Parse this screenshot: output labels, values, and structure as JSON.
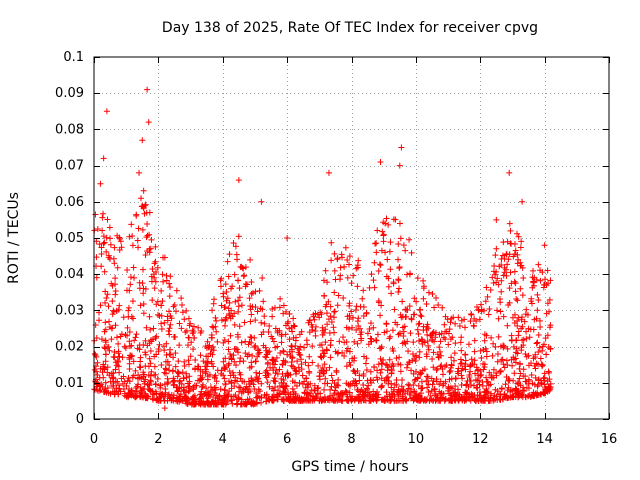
{
  "chart_data": {
    "type": "scatter",
    "title": "Day 138 of 2025, Rate Of TEC Index for receiver cpvg",
    "xlabel": "GPS time / hours",
    "ylabel": "ROTI / TECUs",
    "xlim": [
      0,
      16
    ],
    "ylim": [
      0,
      0.1
    ],
    "xticks": [
      "0",
      "2",
      "4",
      "6",
      "8",
      "10",
      "12",
      "14",
      "16"
    ],
    "yticks": [
      "0",
      "0.01",
      "0.02",
      "0.03",
      "0.04",
      "0.05",
      "0.06",
      "0.07",
      "0.08",
      "0.09",
      "0.1"
    ],
    "xtick_values": [
      0,
      2,
      4,
      6,
      8,
      10,
      12,
      14,
      16
    ],
    "ytick_values": [
      0,
      0.01,
      0.02,
      0.03,
      0.04,
      0.05,
      0.06,
      0.07,
      0.08,
      0.09,
      0.1
    ],
    "grid": true,
    "marker": "+",
    "color": "#ff0000",
    "x_range_of_data": [
      0,
      14.2
    ],
    "series": [
      {
        "name": "ROTI",
        "notable_points": [
          {
            "x": 0.4,
            "y": 0.085
          },
          {
            "x": 1.65,
            "y": 0.091
          },
          {
            "x": 1.7,
            "y": 0.082
          },
          {
            "x": 1.5,
            "y": 0.077
          },
          {
            "x": 0.3,
            "y": 0.072
          },
          {
            "x": 0.2,
            "y": 0.065
          },
          {
            "x": 1.4,
            "y": 0.068
          },
          {
            "x": 4.5,
            "y": 0.066
          },
          {
            "x": 7.3,
            "y": 0.068
          },
          {
            "x": 8.9,
            "y": 0.071
          },
          {
            "x": 9.55,
            "y": 0.075
          },
          {
            "x": 9.5,
            "y": 0.07
          },
          {
            "x": 12.9,
            "y": 0.068
          },
          {
            "x": 13.3,
            "y": 0.06
          },
          {
            "x": 12.5,
            "y": 0.055
          },
          {
            "x": 2.2,
            "y": 0.003
          },
          {
            "x": 5.2,
            "y": 0.06
          },
          {
            "x": 6.0,
            "y": 0.05
          },
          {
            "x": 14.0,
            "y": 0.048
          }
        ],
        "envelope": [
          {
            "x": 0.0,
            "lo": 0.008,
            "hi": 0.06
          },
          {
            "x": 0.5,
            "lo": 0.007,
            "hi": 0.055
          },
          {
            "x": 1.0,
            "lo": 0.006,
            "hi": 0.05
          },
          {
            "x": 1.5,
            "lo": 0.006,
            "hi": 0.065
          },
          {
            "x": 2.0,
            "lo": 0.005,
            "hi": 0.05
          },
          {
            "x": 2.5,
            "lo": 0.005,
            "hi": 0.04
          },
          {
            "x": 3.0,
            "lo": 0.004,
            "hi": 0.028
          },
          {
            "x": 3.5,
            "lo": 0.004,
            "hi": 0.026
          },
          {
            "x": 4.0,
            "lo": 0.004,
            "hi": 0.042
          },
          {
            "x": 4.5,
            "lo": 0.004,
            "hi": 0.052
          },
          {
            "x": 5.0,
            "lo": 0.004,
            "hi": 0.045
          },
          {
            "x": 5.5,
            "lo": 0.005,
            "hi": 0.035
          },
          {
            "x": 6.0,
            "lo": 0.005,
            "hi": 0.032
          },
          {
            "x": 6.5,
            "lo": 0.005,
            "hi": 0.025
          },
          {
            "x": 7.0,
            "lo": 0.005,
            "hi": 0.032
          },
          {
            "x": 7.5,
            "lo": 0.005,
            "hi": 0.055
          },
          {
            "x": 8.0,
            "lo": 0.005,
            "hi": 0.045
          },
          {
            "x": 8.5,
            "lo": 0.005,
            "hi": 0.048
          },
          {
            "x": 9.0,
            "lo": 0.005,
            "hi": 0.055
          },
          {
            "x": 9.5,
            "lo": 0.005,
            "hi": 0.06
          },
          {
            "x": 10.0,
            "lo": 0.005,
            "hi": 0.042
          },
          {
            "x": 10.5,
            "lo": 0.005,
            "hi": 0.035
          },
          {
            "x": 11.0,
            "lo": 0.005,
            "hi": 0.03
          },
          {
            "x": 11.5,
            "lo": 0.005,
            "hi": 0.028
          },
          {
            "x": 12.0,
            "lo": 0.005,
            "hi": 0.032
          },
          {
            "x": 12.5,
            "lo": 0.005,
            "hi": 0.05
          },
          {
            "x": 13.0,
            "lo": 0.006,
            "hi": 0.055
          },
          {
            "x": 13.5,
            "lo": 0.006,
            "hi": 0.045
          },
          {
            "x": 14.0,
            "lo": 0.007,
            "hi": 0.045
          },
          {
            "x": 14.2,
            "lo": 0.008,
            "hi": 0.04
          }
        ]
      }
    ]
  }
}
